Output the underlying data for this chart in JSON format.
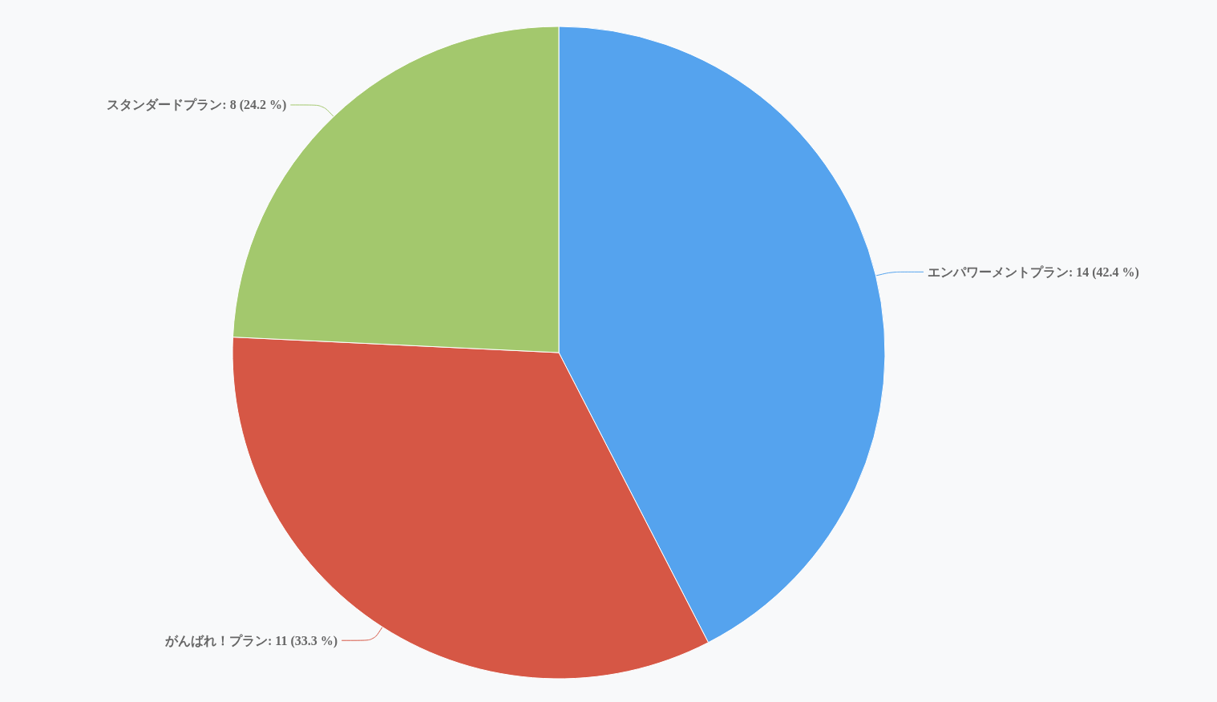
{
  "chart_data": {
    "type": "pie",
    "categories": [
      "エンパワーメントプラン",
      "がんばれ！プラン",
      "スタンダードプラン"
    ],
    "values": [
      14,
      11,
      8
    ],
    "colors": [
      "#55a3ee",
      "#d65745",
      "#a3c86d"
    ],
    "value_labels": [
      "14 (42.4 %)",
      "11 (33.3 %)",
      "8 (24.2 %)"
    ]
  }
}
